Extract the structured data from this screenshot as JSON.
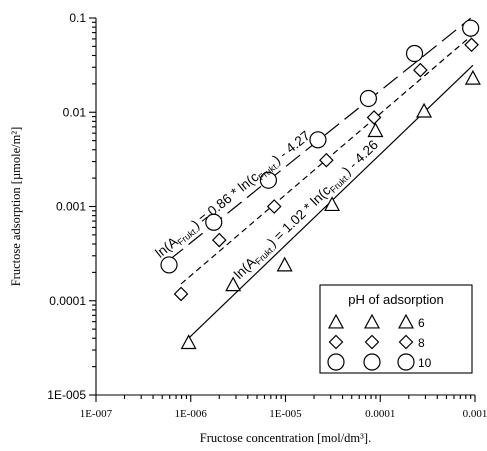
{
  "chart_data": {
    "type": "scatter",
    "xlabel": "Fructose concentration [mol/dm³].",
    "ylabel": "Fructose adsorption [µmole/m²]",
    "x_scale": "log",
    "y_scale": "log",
    "xlim": [
      1e-07,
      0.001
    ],
    "ylim": [
      1e-05,
      0.1
    ],
    "x_ticks": [
      "1E-007",
      "1E-006",
      "1E-005",
      "0.0001",
      "0.001"
    ],
    "y_ticks": [
      "1E-005",
      "0.0001",
      "0.001",
      "0.01",
      "0.1"
    ],
    "grid": false,
    "legend": {
      "title": "pH of adsorption",
      "placement": "bottom-right",
      "entries": [
        {
          "label": "6",
          "marker": "triangle"
        },
        {
          "label": "8",
          "marker": "diamond"
        },
        {
          "label": "10",
          "marker": "circle"
        }
      ]
    },
    "series": [
      {
        "name": "6",
        "marker": "triangle",
        "points": [
          [
            9.5e-07,
            3.6e-05
          ],
          [
            2.8e-06,
            0.000148
          ],
          [
            9.8e-06,
            0.00024
          ],
          [
            3.1e-05,
            0.00105
          ],
          [
            8.9e-05,
            0.0064
          ],
          [
            0.00029,
            0.0103
          ],
          [
            0.00095,
            0.023
          ]
        ],
        "fit": {
          "slope": 1.02,
          "intercept": -4.26,
          "x_range": [
            9.5e-07,
            0.00095
          ],
          "style": "solid"
        }
      },
      {
        "name": "8",
        "marker": "diamond",
        "points": [
          [
            7.9e-07,
            0.000118
          ],
          [
            2e-06,
            0.00044
          ],
          [
            7.6e-06,
            0.001
          ],
          [
            2.7e-05,
            0.0031
          ],
          [
            8.6e-05,
            0.0088
          ],
          [
            0.000265,
            0.028
          ],
          [
            0.00092,
            0.052
          ]
        ],
        "fit": {
          "slope": 0.86,
          "intercept": -4.27,
          "x_range": [
            7.9e-07,
            0.00092
          ],
          "style": "dashed"
        }
      },
      {
        "name": "10",
        "marker": "circle",
        "points": [
          [
            5.9e-07,
            0.00024
          ],
          [
            1.75e-06,
            0.00068
          ],
          [
            6.6e-06,
            0.0019
          ],
          [
            2.2e-05,
            0.0051
          ],
          [
            7.5e-05,
            0.014
          ],
          [
            0.00023,
            0.042
          ],
          [
            0.0009,
            0.078
          ]
        ],
        "fit": {
          "slope": 0.86,
          "intercept": -4.27,
          "x_range": [
            5.9e-07,
            0.0009
          ],
          "style": "longdash"
        }
      }
    ],
    "annotations": [
      {
        "series": "10",
        "parts": [
          "ln(A",
          "Frukt.",
          ") = 0.86 * ln(c",
          "Frukt.",
          ") - 4.27"
        ]
      },
      {
        "series": "6",
        "parts": [
          "ln(A",
          "Frukt.",
          ") = 1.02 * ln(c",
          "Frukt.",
          ") - 4.26"
        ]
      }
    ]
  }
}
